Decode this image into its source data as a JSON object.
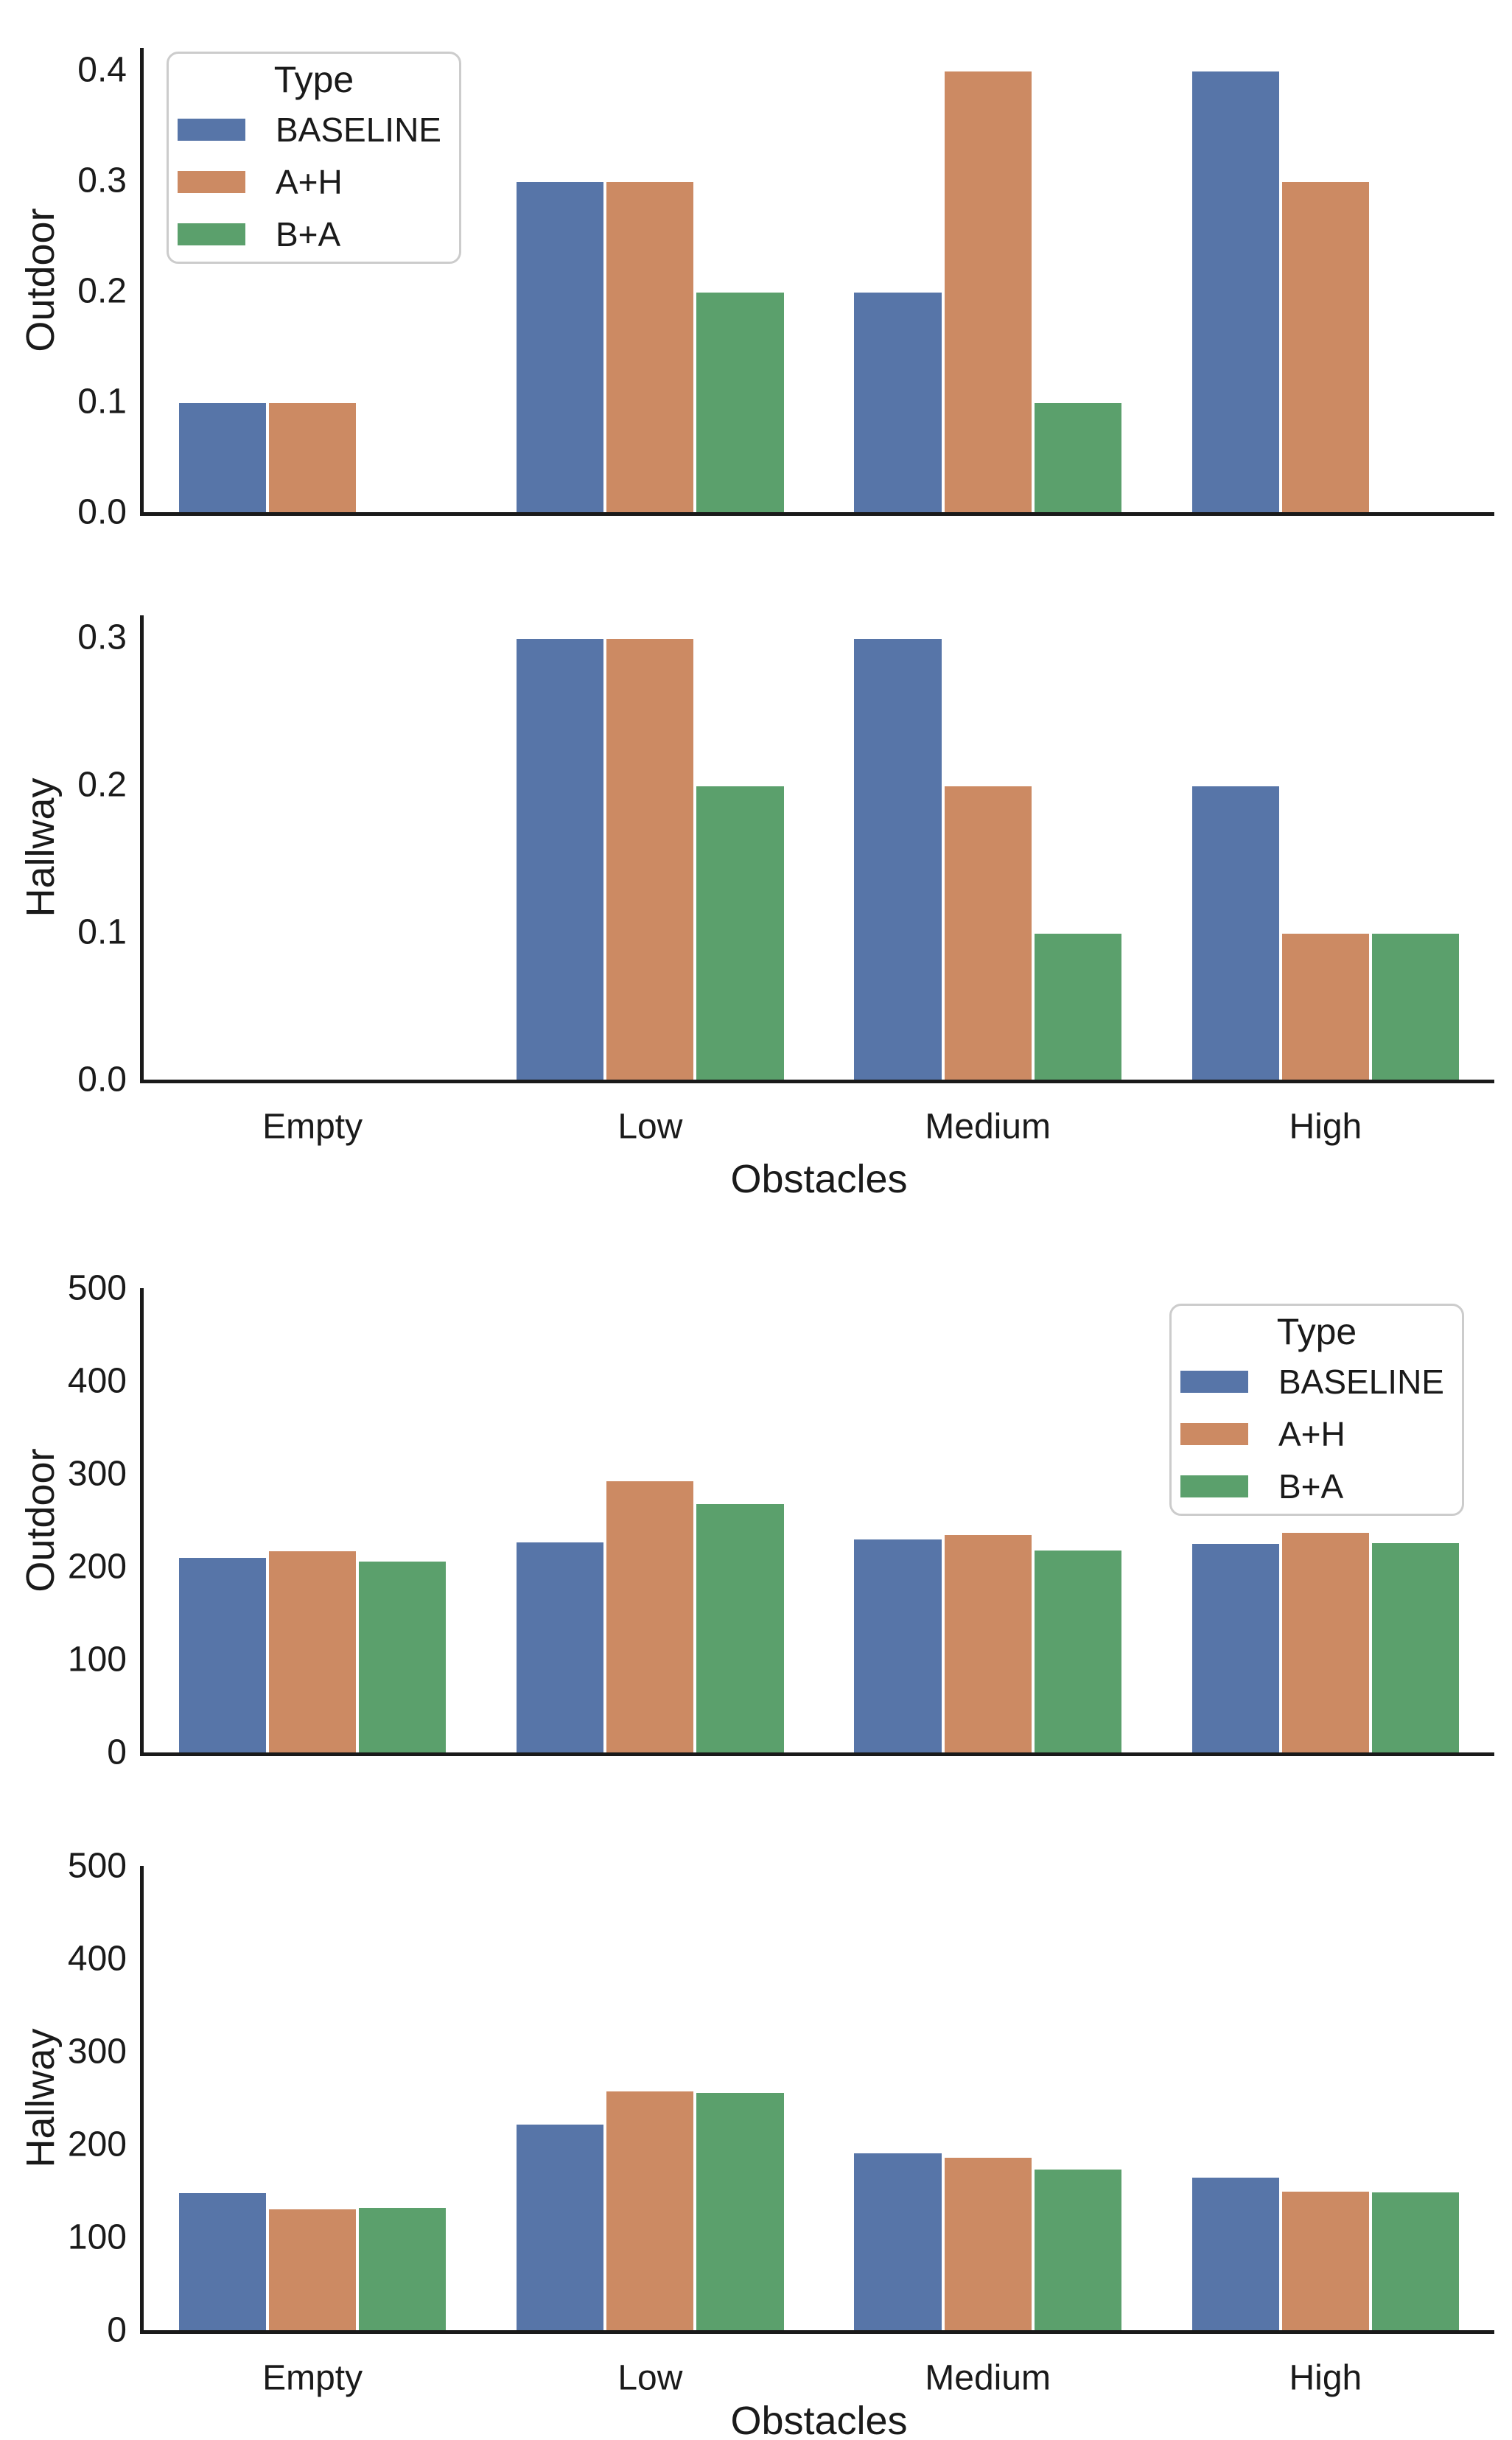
{
  "palette": {
    "series": [
      "#5775a8",
      "#cc8a63",
      "#5ba06c"
    ],
    "spine": "#1a1a1a",
    "text": "#1a1a1a",
    "legend_border": "#cccccc"
  },
  "legend": {
    "title": "Type",
    "labels": [
      "BASELINE",
      "A+H",
      "B+A"
    ]
  },
  "chart_data": [
    {
      "type": "bar",
      "ylabel": "Outdoor",
      "xlabel": "",
      "ylim": [
        0,
        0.42
      ],
      "grid": false,
      "legend_position": "upper left",
      "yticks": [
        {
          "v": 0.0,
          "label": "0.0"
        },
        {
          "v": 0.1,
          "label": "0.1"
        },
        {
          "v": 0.2,
          "label": "0.2"
        },
        {
          "v": 0.3,
          "label": "0.3"
        },
        {
          "v": 0.4,
          "label": "0.4"
        }
      ],
      "categories": [
        "Empty",
        "Low",
        "Medium",
        "High"
      ],
      "series": [
        {
          "name": "BASELINE",
          "values": [
            0.1,
            0.3,
            0.2,
            0.4
          ]
        },
        {
          "name": "A+H",
          "values": [
            0.1,
            0.3,
            0.4,
            0.3
          ]
        },
        {
          "name": "B+A",
          "values": [
            0,
            0.2,
            0.1,
            0
          ]
        }
      ]
    },
    {
      "type": "bar",
      "ylabel": "Hallway",
      "xlabel": "Obstacles",
      "ylim": [
        0,
        0.315
      ],
      "grid": false,
      "legend_position": "none",
      "yticks": [
        {
          "v": 0.0,
          "label": "0.0"
        },
        {
          "v": 0.1,
          "label": "0.1"
        },
        {
          "v": 0.2,
          "label": "0.2"
        },
        {
          "v": 0.3,
          "label": "0.3"
        }
      ],
      "categories": [
        "Empty",
        "Low",
        "Medium",
        "High"
      ],
      "series": [
        {
          "name": "BASELINE",
          "values": [
            0,
            0.3,
            0.3,
            0.2
          ]
        },
        {
          "name": "A+H",
          "values": [
            0,
            0.3,
            0.2,
            0.1
          ]
        },
        {
          "name": "B+A",
          "values": [
            0,
            0.2,
            0.1,
            0.1
          ]
        }
      ]
    },
    {
      "type": "bar",
      "ylabel": "Outdoor",
      "xlabel": "",
      "ylim": [
        0,
        500
      ],
      "grid": false,
      "legend_position": "upper right",
      "yticks": [
        {
          "v": 0,
          "label": "0"
        },
        {
          "v": 100,
          "label": "100"
        },
        {
          "v": 200,
          "label": "200"
        },
        {
          "v": 300,
          "label": "300"
        },
        {
          "v": 400,
          "label": "400"
        },
        {
          "v": 500,
          "label": "500"
        }
      ],
      "categories": [
        "Empty",
        "Low",
        "Medium",
        "High"
      ],
      "series": [
        {
          "name": "BASELINE",
          "values": [
            211,
            228,
            231,
            226
          ]
        },
        {
          "name": "A+H",
          "values": [
            218,
            294,
            236,
            238
          ]
        },
        {
          "name": "B+A",
          "values": [
            207,
            269,
            219,
            227
          ]
        }
      ]
    },
    {
      "type": "bar",
      "ylabel": "Hallway",
      "xlabel": "Obstacles",
      "ylim": [
        0,
        500
      ],
      "grid": false,
      "legend_position": "none",
      "yticks": [
        {
          "v": 0,
          "label": "0"
        },
        {
          "v": 100,
          "label": "100"
        },
        {
          "v": 200,
          "label": "200"
        },
        {
          "v": 300,
          "label": "300"
        },
        {
          "v": 400,
          "label": "400"
        },
        {
          "v": 500,
          "label": "500"
        }
      ],
      "categories": [
        "Empty",
        "Low",
        "Medium",
        "High"
      ],
      "series": [
        {
          "name": "BASELINE",
          "values": [
            149,
            223,
            192,
            166
          ]
        },
        {
          "name": "A+H",
          "values": [
            132,
            259,
            187,
            151
          ]
        },
        {
          "name": "B+A",
          "values": [
            133,
            257,
            175,
            150
          ]
        }
      ]
    }
  ]
}
